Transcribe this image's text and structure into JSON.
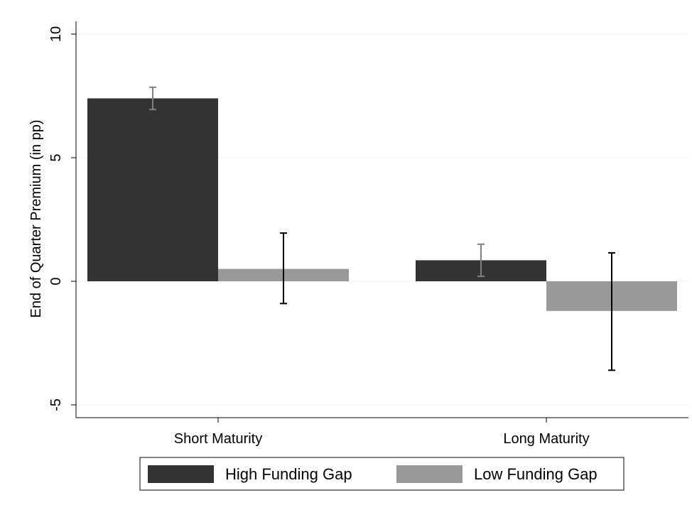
{
  "chart_data": {
    "type": "bar",
    "title": "",
    "xlabel": "",
    "ylabel": "End of Quarter Premium (in pp)",
    "categories": [
      "Short Maturity",
      "Long Maturity"
    ],
    "series": [
      {
        "name": "High Funding Gap",
        "color": "#333333",
        "errorbar_color": "#808080",
        "values": [
          7.4,
          0.85
        ],
        "ci_low": [
          6.95,
          0.2
        ],
        "ci_high": [
          7.85,
          1.5
        ]
      },
      {
        "name": "Low Funding Gap",
        "color": "#999999",
        "errorbar_color": "#000000",
        "values": [
          0.5,
          -1.2
        ],
        "ci_low": [
          -0.9,
          -3.6
        ],
        "ci_high": [
          1.95,
          1.15
        ]
      }
    ],
    "yticks": [
      "-5",
      "0",
      "5",
      "10"
    ],
    "ylim": [
      -5.5,
      10.3
    ],
    "grid": true,
    "legend_position": "bottom"
  }
}
